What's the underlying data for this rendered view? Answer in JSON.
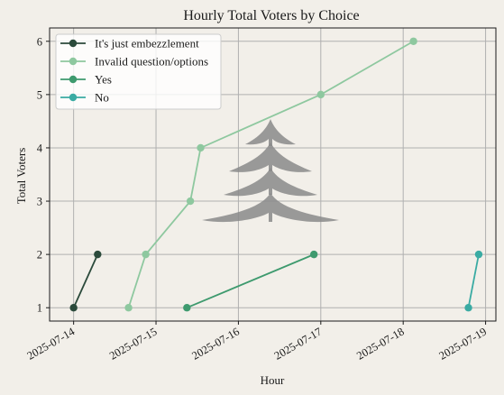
{
  "chart_data": {
    "type": "line",
    "title": "Hourly Total Voters by Choice",
    "xlabel": "Hour",
    "ylabel": "Total Voters",
    "x_ticks": [
      "2025-07-14",
      "2025-07-15",
      "2025-07-16",
      "2025-07-17",
      "2025-07-18",
      "2025-07-19"
    ],
    "y_ticks": [
      1,
      2,
      3,
      4,
      5,
      6
    ],
    "xlim": [
      "2025-07-13 17:00",
      "2025-07-19 03:00"
    ],
    "ylim": [
      0.75,
      6.25
    ],
    "grid": true,
    "legend_position": "top-left",
    "series": [
      {
        "name": "It's just embezzlement",
        "color": "#2b4a3b",
        "points": [
          {
            "x": "2025-07-14 00:00",
            "y": 1
          },
          {
            "x": "2025-07-14 07:00",
            "y": 2
          }
        ]
      },
      {
        "name": "Invalid question/options",
        "color": "#8ec89f",
        "points": [
          {
            "x": "2025-07-14 16:00",
            "y": 1
          },
          {
            "x": "2025-07-14 21:00",
            "y": 2
          },
          {
            "x": "2025-07-15 10:00",
            "y": 3
          },
          {
            "x": "2025-07-15 13:00",
            "y": 4
          },
          {
            "x": "2025-07-17 00:00",
            "y": 5
          },
          {
            "x": "2025-07-18 03:00",
            "y": 6
          }
        ]
      },
      {
        "name": "Yes",
        "color": "#3e9a6e",
        "points": [
          {
            "x": "2025-07-15 09:00",
            "y": 1
          },
          {
            "x": "2025-07-16 22:00",
            "y": 2
          }
        ]
      },
      {
        "name": "No",
        "color": "#3aaba3",
        "points": [
          {
            "x": "2025-07-18 19:00",
            "y": 1
          },
          {
            "x": "2025-07-18 22:00",
            "y": 2
          }
        ]
      }
    ]
  }
}
